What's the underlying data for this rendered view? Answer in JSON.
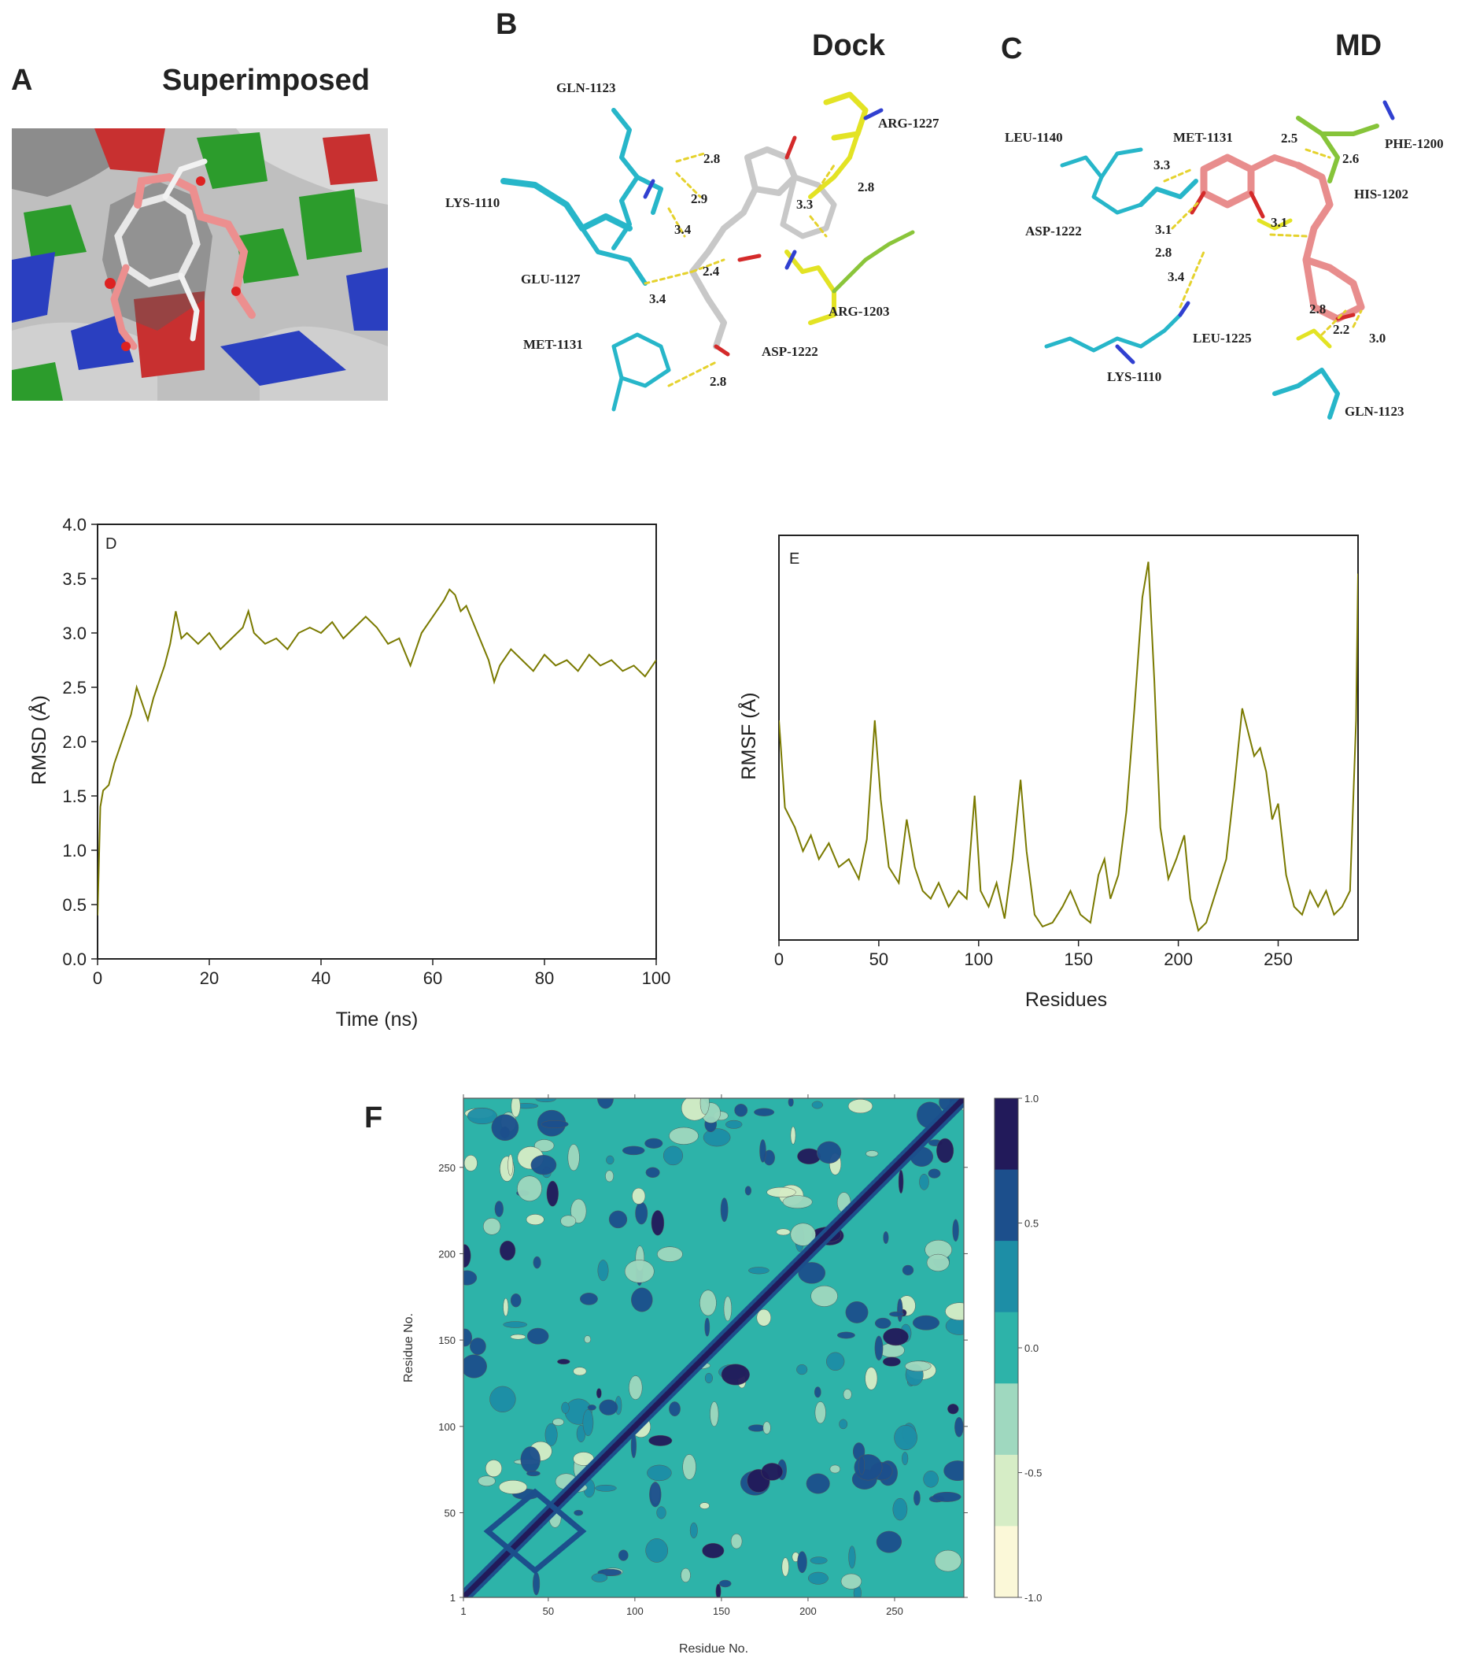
{
  "panels": {
    "A": {
      "letter": "A",
      "title": "Superimposed"
    },
    "B": {
      "letter": "B",
      "title": "Dock",
      "residues": [
        "GLN-1123",
        "ARG-1227",
        "LYS-1110",
        "GLU-1127",
        "ARG-1203",
        "MET-1131",
        "ASP-1222"
      ],
      "distances": [
        "2.8",
        "2.9",
        "3.4",
        "2.4",
        "3.4",
        "2.8",
        "3.3",
        "2.8"
      ]
    },
    "C": {
      "letter": "C",
      "title": "MD",
      "residues": [
        "LEU-1140",
        "MET-1131",
        "PHE-1200",
        "HIS-1202",
        "ASP-1222",
        "LEU-1225",
        "LYS-1110",
        "GLN-1123"
      ],
      "distances": [
        "2.5",
        "2.6",
        "3.3",
        "3.1",
        "2.8",
        "3.1",
        "3.4",
        "2.8",
        "2.2",
        "3.0"
      ]
    }
  },
  "chart_data": [
    {
      "panel": "D",
      "type": "line",
      "label": "D",
      "xlabel": "Time (ns)",
      "ylabel": "RMSD (Å)",
      "xlim": [
        0,
        100
      ],
      "ylim": [
        0,
        4.0
      ],
      "xticks": [
        "0",
        "20",
        "40",
        "60",
        "80",
        "100"
      ],
      "yticks": [
        "0.0",
        "0.5",
        "1.0",
        "1.5",
        "2.0",
        "2.5",
        "3.0",
        "3.5",
        "4.0"
      ],
      "color": "#7a7a00",
      "x": [
        0,
        0.5,
        1,
        2,
        3,
        4,
        5,
        6,
        7,
        8,
        9,
        10,
        11,
        12,
        13,
        14,
        15,
        16,
        18,
        20,
        22,
        24,
        26,
        27,
        28,
        30,
        32,
        34,
        36,
        38,
        40,
        42,
        44,
        46,
        48,
        50,
        52,
        54,
        56,
        58,
        60,
        62,
        63,
        64,
        65,
        66,
        68,
        70,
        71,
        72,
        74,
        76,
        78,
        80,
        82,
        84,
        86,
        88,
        90,
        92,
        94,
        96,
        98,
        100
      ],
      "y": [
        0.4,
        1.4,
        1.55,
        1.6,
        1.8,
        1.95,
        2.1,
        2.25,
        2.5,
        2.35,
        2.2,
        2.4,
        2.55,
        2.7,
        2.9,
        3.2,
        2.95,
        3.0,
        2.9,
        3.0,
        2.85,
        2.95,
        3.05,
        3.2,
        3.0,
        2.9,
        2.95,
        2.85,
        3.0,
        3.05,
        3.0,
        3.1,
        2.95,
        3.05,
        3.15,
        3.05,
        2.9,
        2.95,
        2.7,
        3.0,
        3.15,
        3.3,
        3.4,
        3.35,
        3.2,
        3.25,
        3.0,
        2.75,
        2.55,
        2.7,
        2.85,
        2.75,
        2.65,
        2.8,
        2.7,
        2.75,
        2.65,
        2.8,
        2.7,
        2.75,
        2.65,
        2.7,
        2.6,
        2.75
      ]
    },
    {
      "panel": "E",
      "type": "line",
      "label": "E",
      "xlabel": "Residues",
      "ylabel": "RMSF (Å)",
      "xlim": [
        0,
        290
      ],
      "xticks": [
        "0",
        "50",
        "100",
        "150",
        "200",
        "250"
      ],
      "color": "#7a7a00",
      "x": [
        0,
        1,
        3,
        8,
        12,
        16,
        20,
        25,
        30,
        35,
        40,
        44,
        48,
        51,
        55,
        60,
        64,
        68,
        72,
        76,
        80,
        85,
        90,
        94,
        98,
        101,
        105,
        109,
        113,
        117,
        121,
        124,
        128,
        132,
        137,
        142,
        146,
        151,
        156,
        160,
        163,
        166,
        170,
        174,
        178,
        182,
        185,
        188,
        191,
        195,
        199,
        203,
        206,
        210,
        214,
        219,
        224,
        228,
        232,
        235,
        238,
        241,
        244,
        247,
        250,
        254,
        258,
        262,
        266,
        270,
        274,
        278,
        282,
        286,
        289,
        290
      ],
      "y": [
        0.55,
        0.48,
        0.33,
        0.28,
        0.22,
        0.26,
        0.2,
        0.24,
        0.18,
        0.2,
        0.15,
        0.25,
        0.55,
        0.35,
        0.18,
        0.14,
        0.3,
        0.18,
        0.12,
        0.1,
        0.14,
        0.08,
        0.12,
        0.1,
        0.36,
        0.12,
        0.08,
        0.14,
        0.05,
        0.2,
        0.4,
        0.22,
        0.06,
        0.03,
        0.04,
        0.08,
        0.12,
        0.06,
        0.04,
        0.16,
        0.2,
        0.1,
        0.16,
        0.32,
        0.58,
        0.86,
        0.95,
        0.65,
        0.28,
        0.15,
        0.2,
        0.26,
        0.1,
        0.02,
        0.04,
        0.12,
        0.2,
        0.38,
        0.58,
        0.52,
        0.46,
        0.48,
        0.42,
        0.3,
        0.34,
        0.16,
        0.08,
        0.06,
        0.12,
        0.08,
        0.12,
        0.06,
        0.08,
        0.12,
        0.55,
        0.92
      ]
    },
    {
      "panel": "F",
      "type": "heatmap",
      "letter": "F",
      "xlabel": "Residue No.",
      "ylabel": "Residue No.",
      "xticks": [
        "1",
        "50",
        "100",
        "150",
        "200",
        "250"
      ],
      "yticks": [
        "1",
        "50",
        "100",
        "150",
        "200",
        "250"
      ],
      "xlim": [
        1,
        290
      ],
      "ylim": [
        1,
        290
      ],
      "colorbar": {
        "ticks": [
          "1.0",
          "0.5",
          "0.0",
          "-0.5",
          "-1.0"
        ],
        "colors": [
          "#221a5a",
          "#1c4f8c",
          "#1d8ea6",
          "#2db3a9",
          "#9fd8bf",
          "#d6edc6",
          "#fbf8d8"
        ]
      }
    }
  ]
}
